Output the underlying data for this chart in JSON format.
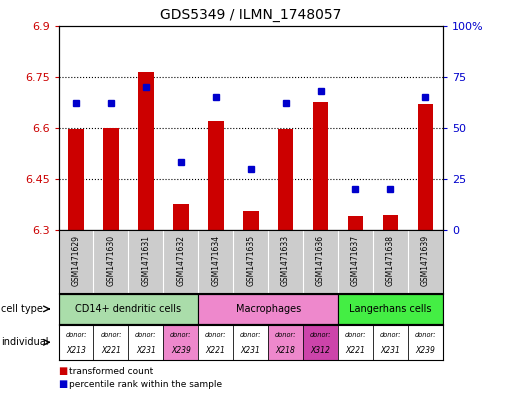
{
  "title": "GDS5349 / ILMN_1748057",
  "samples": [
    "GSM1471629",
    "GSM1471630",
    "GSM1471631",
    "GSM1471632",
    "GSM1471634",
    "GSM1471635",
    "GSM1471633",
    "GSM1471636",
    "GSM1471637",
    "GSM1471638",
    "GSM1471639"
  ],
  "transformed_count": [
    6.595,
    6.6,
    6.765,
    6.375,
    6.62,
    6.355,
    6.595,
    6.675,
    6.34,
    6.345,
    6.67
  ],
  "percentile_rank": [
    62,
    62,
    70,
    33,
    65,
    30,
    62,
    68,
    20,
    20,
    65
  ],
  "ylim_left": [
    6.3,
    6.9
  ],
  "ylim_right": [
    0,
    100
  ],
  "yticks_left": [
    6.3,
    6.45,
    6.6,
    6.75,
    6.9
  ],
  "yticks_right": [
    0,
    25,
    50,
    75,
    100
  ],
  "ytick_labels_right": [
    "0",
    "25",
    "50",
    "75",
    "100%"
  ],
  "bar_color": "#cc0000",
  "dot_color": "#0000cc",
  "cell_type_groups": [
    {
      "label": "CD14+ dendritic cells",
      "start": 0,
      "end": 4,
      "color": "#aaddaa"
    },
    {
      "label": "Macrophages",
      "start": 4,
      "end": 8,
      "color": "#ee88cc"
    },
    {
      "label": "Langerhans cells",
      "start": 8,
      "end": 11,
      "color": "#44ee44"
    }
  ],
  "individuals": [
    {
      "donor": "X213",
      "color": "#ffffff"
    },
    {
      "donor": "X221",
      "color": "#ffffff"
    },
    {
      "donor": "X231",
      "color": "#ffffff"
    },
    {
      "donor": "X239",
      "color": "#ee88cc"
    },
    {
      "donor": "X221",
      "color": "#ffffff"
    },
    {
      "donor": "X231",
      "color": "#ffffff"
    },
    {
      "donor": "X218",
      "color": "#ee88cc"
    },
    {
      "donor": "X312",
      "color": "#cc44aa"
    },
    {
      "donor": "X221",
      "color": "#ffffff"
    },
    {
      "donor": "X231",
      "color": "#ffffff"
    },
    {
      "donor": "X239",
      "color": "#ffffff"
    }
  ],
  "legend_bar_label": "transformed count",
  "legend_dot_label": "percentile rank within the sample",
  "cell_type_label": "cell type",
  "individual_label": "individual",
  "sample_bg_color": "#cccccc",
  "fig_bg_color": "#ffffff",
  "plot_bg_color": "#ffffff",
  "dotted_lines": [
    6.45,
    6.6,
    6.75
  ]
}
